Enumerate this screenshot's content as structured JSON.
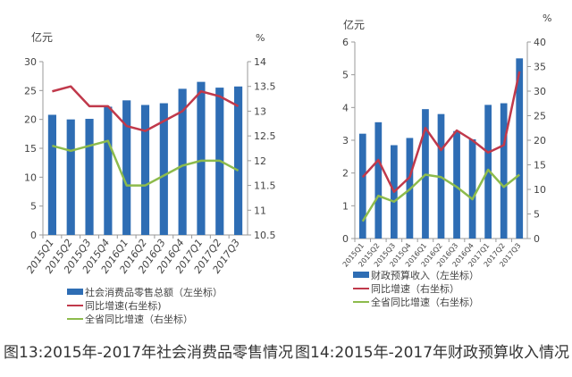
{
  "colors": {
    "bar": "#2e6db4",
    "red": "#c0394b",
    "green": "#8dbb4c",
    "axis": "#999999",
    "text": "#444444"
  },
  "chart_data": [
    {
      "type": "bar+line",
      "caption": "图13:2015年-2017年社会消费品零售情况",
      "ylabel_left": "亿元",
      "ylabel_right": "%",
      "ylim_left": [
        0,
        30
      ],
      "yticks_left": [
        0,
        5,
        10,
        15,
        20,
        25,
        30
      ],
      "ylim_right": [
        10.5,
        14
      ],
      "yticks_right": [
        10.5,
        11,
        11.5,
        12,
        12.5,
        13,
        13.5,
        14
      ],
      "categories": [
        "2015Q1",
        "2015Q2",
        "2015Q3",
        "2015Q4",
        "2016Q1",
        "2016Q2",
        "2016Q3",
        "2016Q4",
        "2017Q1",
        "2017Q2",
        "2017Q3"
      ],
      "legend_position": "bottom",
      "series": [
        {
          "name": "社会消费品零售总额（左坐标）",
          "type": "bar",
          "axis": "left",
          "values": [
            20.8,
            20.0,
            20.1,
            22.2,
            23.3,
            22.5,
            22.8,
            25.3,
            26.5,
            25.5,
            25.7
          ]
        },
        {
          "name": "同比增速(右坐标)",
          "type": "line",
          "axis": "right",
          "color": "red",
          "values": [
            13.4,
            13.5,
            13.1,
            13.1,
            12.7,
            12.6,
            12.8,
            13.0,
            13.4,
            13.3,
            13.1
          ]
        },
        {
          "name": "全省同比增速（右坐标）",
          "type": "line",
          "axis": "right",
          "color": "green",
          "values": [
            12.3,
            12.2,
            12.3,
            12.4,
            11.5,
            11.5,
            11.7,
            11.9,
            12.0,
            12.0,
            11.8
          ]
        }
      ]
    },
    {
      "type": "bar+line",
      "caption": "图14:2015年-2017年财政预算收入情况",
      "ylabel_left": "亿元",
      "ylabel_right": "%",
      "ylim_left": [
        0,
        6
      ],
      "yticks_left": [
        0,
        1,
        2,
        3,
        4,
        5,
        6
      ],
      "ylim_right": [
        0,
        40
      ],
      "yticks_right": [
        0,
        5,
        10,
        15,
        20,
        25,
        30,
        35,
        40
      ],
      "categories": [
        "2015Q1",
        "2015Q2",
        "2015Q3",
        "2015Q4",
        "2016Q1",
        "2016Q2",
        "2016Q3",
        "2016Q4",
        "2017Q1",
        "2017Q2",
        "2017Q3"
      ],
      "legend_position": "bottom",
      "series": [
        {
          "name": "财政预算收入（左坐标）",
          "type": "bar",
          "axis": "left",
          "values": [
            3.2,
            3.55,
            2.85,
            3.07,
            3.95,
            3.8,
            3.28,
            3.03,
            4.08,
            4.13,
            5.5
          ]
        },
        {
          "name": "同比增速（右坐标）",
          "type": "line",
          "axis": "right",
          "color": "red",
          "values": [
            12.5,
            16,
            9.5,
            12.5,
            22.5,
            18,
            22,
            20,
            17.5,
            19,
            34
          ]
        },
        {
          "name": "全省同比增速（右坐标）",
          "type": "line",
          "axis": "right",
          "color": "green",
          "values": [
            3.5,
            8.7,
            7.5,
            10,
            13,
            12.5,
            10.5,
            8,
            14,
            10.5,
            13
          ]
        }
      ]
    }
  ]
}
